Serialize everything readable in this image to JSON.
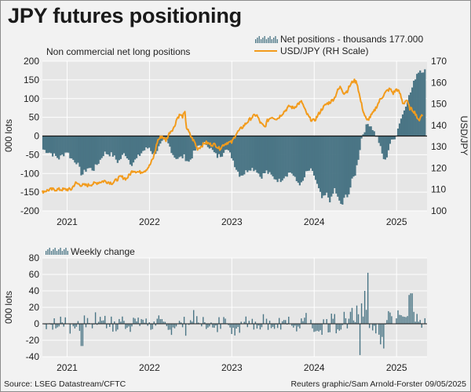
{
  "title": "JPY futures positioning",
  "footer": {
    "source": "Source: LSEG Datastream/CFTC",
    "credit": "Reuters graphic/Sam Arnold-Forster 09/05/2025"
  },
  "colors": {
    "bars": "#4a7585",
    "line": "#f29b1c",
    "zero": "#1a1a1a",
    "grid": "#ffffff",
    "plot_bg": "#e6e6e6"
  },
  "chart_data": [
    {
      "type": "bar+line",
      "subtitle": "Non commercial net long positions",
      "ylabel": "000 lots",
      "y2label": "USD/JPY",
      "ylim": [
        -200,
        200
      ],
      "yticks": [
        -200,
        -150,
        -100,
        -50,
        0,
        50,
        100,
        150,
        200
      ],
      "y2lim": [
        100,
        170
      ],
      "y2ticks": [
        100,
        110,
        120,
        130,
        140,
        150,
        160,
        170
      ],
      "xlim": [
        2020.7,
        2025.37
      ],
      "x_labels": [
        {
          "label": "2021",
          "x": 2021.0
        },
        {
          "label": "2022",
          "x": 2022.0
        },
        {
          "label": "2023",
          "x": 2023.0
        },
        {
          "label": "2024",
          "x": 2024.0
        },
        {
          "label": "2025",
          "x": 2025.0
        }
      ],
      "grid": true,
      "legend_position": "top-right",
      "legend": [
        {
          "name": "Net positions - thousands 177.000",
          "kind": "bar"
        },
        {
          "name": "USD/JPY (RH Scale)",
          "kind": "line"
        }
      ],
      "net_positions_keyframes": [
        [
          2020.7,
          -35
        ],
        [
          2020.8,
          -45
        ],
        [
          2020.9,
          -60
        ],
        [
          2020.95,
          -50
        ],
        [
          2021.0,
          -40
        ],
        [
          2021.05,
          -60
        ],
        [
          2021.12,
          -70
        ],
        [
          2021.18,
          -105
        ],
        [
          2021.25,
          -85
        ],
        [
          2021.32,
          -90
        ],
        [
          2021.4,
          -65
        ],
        [
          2021.45,
          -45
        ],
        [
          2021.55,
          -50
        ],
        [
          2021.62,
          -70
        ],
        [
          2021.7,
          -45
        ],
        [
          2021.78,
          -75
        ],
        [
          2021.85,
          -60
        ],
        [
          2021.92,
          -40
        ],
        [
          2022.0,
          -30
        ],
        [
          2022.05,
          -50
        ],
        [
          2022.1,
          -35
        ],
        [
          2022.15,
          -20
        ],
        [
          2022.2,
          -10
        ],
        [
          2022.25,
          -30
        ],
        [
          2022.3,
          -55
        ],
        [
          2022.35,
          -60
        ],
        [
          2022.42,
          -55
        ],
        [
          2022.48,
          -70
        ],
        [
          2022.55,
          -40
        ],
        [
          2022.6,
          -25
        ],
        [
          2022.7,
          -20
        ],
        [
          2022.75,
          -35
        ],
        [
          2022.82,
          -55
        ],
        [
          2022.88,
          -50
        ],
        [
          2022.92,
          -30
        ],
        [
          2022.95,
          -40
        ],
        [
          2023.0,
          -55
        ],
        [
          2023.05,
          -85
        ],
        [
          2023.1,
          -105
        ],
        [
          2023.15,
          -100
        ],
        [
          2023.22,
          -85
        ],
        [
          2023.3,
          -90
        ],
        [
          2023.35,
          -110
        ],
        [
          2023.42,
          -95
        ],
        [
          2023.5,
          -110
        ],
        [
          2023.58,
          -120
        ],
        [
          2023.65,
          -105
        ],
        [
          2023.72,
          -95
        ],
        [
          2023.78,
          -120
        ],
        [
          2023.85,
          -130
        ],
        [
          2023.9,
          -100
        ],
        [
          2023.95,
          -90
        ],
        [
          2024.0,
          -105
        ],
        [
          2024.05,
          -140
        ],
        [
          2024.1,
          -170
        ],
        [
          2024.15,
          -155
        ],
        [
          2024.2,
          -175
        ],
        [
          2024.25,
          -140
        ],
        [
          2024.3,
          -175
        ],
        [
          2024.34,
          -185
        ],
        [
          2024.38,
          -160
        ],
        [
          2024.42,
          -155
        ],
        [
          2024.46,
          -120
        ],
        [
          2024.5,
          -100
        ],
        [
          2024.54,
          -55
        ],
        [
          2024.58,
          0
        ],
        [
          2024.62,
          20
        ],
        [
          2024.66,
          35
        ],
        [
          2024.7,
          25
        ],
        [
          2024.74,
          5
        ],
        [
          2024.78,
          -10
        ],
        [
          2024.82,
          -45
        ],
        [
          2024.86,
          -70
        ],
        [
          2024.88,
          -55
        ],
        [
          2024.92,
          -20
        ],
        [
          2024.96,
          -10
        ],
        [
          2025.0,
          5
        ],
        [
          2025.04,
          40
        ],
        [
          2025.08,
          60
        ],
        [
          2025.12,
          90
        ],
        [
          2025.16,
          110
        ],
        [
          2025.2,
          135
        ],
        [
          2025.24,
          165
        ],
        [
          2025.28,
          177
        ],
        [
          2025.32,
          175
        ]
      ],
      "usdjpy_keyframes": [
        [
          2020.7,
          109
        ],
        [
          2020.8,
          110
        ],
        [
          2020.9,
          110
        ],
        [
          2021.0,
          110
        ],
        [
          2021.05,
          110
        ],
        [
          2021.1,
          113
        ],
        [
          2021.18,
          112
        ],
        [
          2021.25,
          112
        ],
        [
          2021.35,
          113
        ],
        [
          2021.45,
          114
        ],
        [
          2021.55,
          113
        ],
        [
          2021.65,
          116
        ],
        [
          2021.72,
          115
        ],
        [
          2021.8,
          119
        ],
        [
          2021.88,
          118
        ],
        [
          2021.95,
          119
        ],
        [
          2022.0,
          121
        ],
        [
          2022.05,
          125
        ],
        [
          2022.1,
          133
        ],
        [
          2022.15,
          135
        ],
        [
          2022.2,
          133
        ],
        [
          2022.25,
          137
        ],
        [
          2022.3,
          139
        ],
        [
          2022.33,
          143
        ],
        [
          2022.37,
          145
        ],
        [
          2022.4,
          144
        ],
        [
          2022.43,
          146
        ],
        [
          2022.45,
          139
        ],
        [
          2022.5,
          135
        ],
        [
          2022.55,
          132
        ],
        [
          2022.58,
          129
        ],
        [
          2022.62,
          130
        ],
        [
          2022.68,
          132
        ],
        [
          2022.75,
          131
        ],
        [
          2022.8,
          131
        ],
        [
          2022.85,
          129
        ],
        [
          2022.9,
          131
        ],
        [
          2022.95,
          132
        ],
        [
          2023.0,
          132
        ],
        [
          2023.05,
          136
        ],
        [
          2023.1,
          138
        ],
        [
          2023.15,
          140
        ],
        [
          2023.2,
          142
        ],
        [
          2023.25,
          144
        ],
        [
          2023.3,
          145
        ],
        [
          2023.35,
          141
        ],
        [
          2023.4,
          139
        ],
        [
          2023.43,
          142
        ],
        [
          2023.48,
          144
        ],
        [
          2023.55,
          143
        ],
        [
          2023.6,
          145
        ],
        [
          2023.65,
          147
        ],
        [
          2023.7,
          149
        ],
        [
          2023.75,
          148
        ],
        [
          2023.8,
          150
        ],
        [
          2023.85,
          151
        ],
        [
          2023.9,
          146
        ],
        [
          2023.95,
          143
        ],
        [
          2024.0,
          142
        ],
        [
          2024.05,
          145
        ],
        [
          2024.1,
          148
        ],
        [
          2024.15,
          150
        ],
        [
          2024.2,
          151
        ],
        [
          2024.25,
          153
        ],
        [
          2024.28,
          156
        ],
        [
          2024.32,
          158
        ],
        [
          2024.36,
          155
        ],
        [
          2024.4,
          156
        ],
        [
          2024.44,
          159
        ],
        [
          2024.48,
          161
        ],
        [
          2024.52,
          160
        ],
        [
          2024.56,
          152
        ],
        [
          2024.6,
          146
        ],
        [
          2024.64,
          142
        ],
        [
          2024.68,
          144
        ],
        [
          2024.72,
          146
        ],
        [
          2024.76,
          149
        ],
        [
          2024.8,
          152
        ],
        [
          2024.84,
          154
        ],
        [
          2024.88,
          156
        ],
        [
          2024.92,
          157
        ],
        [
          2024.96,
          155
        ],
        [
          2025.0,
          157
        ],
        [
          2025.04,
          155
        ],
        [
          2025.08,
          150
        ],
        [
          2025.12,
          152
        ],
        [
          2025.16,
          148
        ],
        [
          2025.2,
          147
        ],
        [
          2025.24,
          145
        ],
        [
          2025.26,
          142
        ],
        [
          2025.28,
          143
        ],
        [
          2025.3,
          145
        ],
        [
          2025.32,
          144
        ]
      ]
    },
    {
      "type": "bar",
      "legend": [
        {
          "name": "Weekly change",
          "kind": "bar"
        }
      ],
      "legend_position": "top-left",
      "ylabel": "000 lots",
      "ylim": [
        -40,
        80
      ],
      "yticks": [
        -40,
        -20,
        0,
        20,
        40,
        60,
        80
      ],
      "xlim": [
        2020.7,
        2025.37
      ],
      "x_labels": [
        {
          "label": "2021",
          "x": 2021.0
        },
        {
          "label": "2022",
          "x": 2022.0
        },
        {
          "label": "2023",
          "x": 2023.0
        },
        {
          "label": "2024",
          "x": 2024.0
        },
        {
          "label": "2025",
          "x": 2025.0
        }
      ],
      "grid": true,
      "highlights": [
        {
          "x": 2024.65,
          "value": 62
        },
        {
          "x": 2024.61,
          "value": 40
        },
        {
          "x": 2025.18,
          "value": 37
        },
        {
          "x": 2025.15,
          "value": 35
        },
        {
          "x": 2024.55,
          "value": -38
        },
        {
          "x": 2024.84,
          "value": -30
        },
        {
          "x": 2024.8,
          "value": -25
        },
        {
          "x": 2021.18,
          "value": -27
        }
      ]
    }
  ]
}
